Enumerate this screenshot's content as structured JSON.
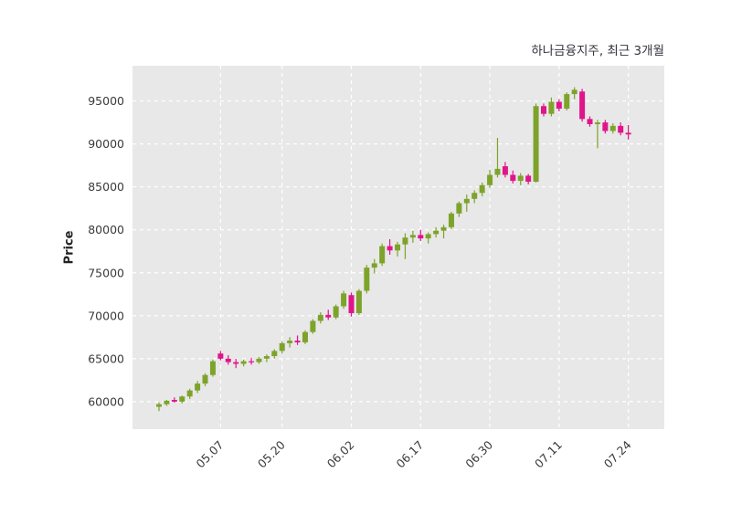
{
  "figure": {
    "title": "하나금융지주, 최근 3개월",
    "y_axis_label": "Price"
  },
  "chart_data": {
    "type": "candlestick",
    "title": "하나금융지주, 최근 3개월",
    "subtitle": "",
    "xlabel": "",
    "ylabel": "Price",
    "ylim": [
      56800,
      99100
    ],
    "y_ticks": [
      60000,
      65000,
      70000,
      75000,
      80000,
      85000,
      90000,
      95000
    ],
    "x_ticks": [
      {
        "index": 8,
        "label": "05.07"
      },
      {
        "index": 16,
        "label": "05.20"
      },
      {
        "index": 25,
        "label": "06.02"
      },
      {
        "index": 34,
        "label": "06.17"
      },
      {
        "index": 43,
        "label": "06.30"
      },
      {
        "index": 52,
        "label": "07.11"
      },
      {
        "index": 61,
        "label": "07.24"
      }
    ],
    "grid": "dashed white, horizontal and vertical, on",
    "legend_position": "none",
    "candles_format": [
      "open",
      "high",
      "low",
      "close"
    ],
    "candles": [
      [
        59400,
        59900,
        58900,
        59700
      ],
      [
        59700,
        60200,
        59500,
        60100
      ],
      [
        60200,
        60500,
        59900,
        60000
      ],
      [
        60000,
        60700,
        59800,
        60600
      ],
      [
        60600,
        61500,
        60300,
        61300
      ],
      [
        61300,
        62400,
        61000,
        62100
      ],
      [
        62100,
        63300,
        61800,
        63100
      ],
      [
        63100,
        64900,
        62900,
        64700
      ],
      [
        65600,
        65900,
        64800,
        65000
      ],
      [
        65000,
        65400,
        64300,
        64600
      ],
      [
        64600,
        65000,
        63900,
        64400
      ],
      [
        64400,
        64900,
        64100,
        64700
      ],
      [
        64700,
        65100,
        64300,
        64600
      ],
      [
        64600,
        65200,
        64400,
        65000
      ],
      [
        65000,
        65500,
        64600,
        65300
      ],
      [
        65300,
        66100,
        65000,
        65900
      ],
      [
        65900,
        67000,
        65600,
        66800
      ],
      [
        66800,
        67500,
        66300,
        67100
      ],
      [
        67100,
        67700,
        66600,
        66900
      ],
      [
        66900,
        68300,
        66700,
        68100
      ],
      [
        68100,
        69600,
        67900,
        69400
      ],
      [
        69400,
        70400,
        69100,
        70100
      ],
      [
        70100,
        70700,
        69500,
        69800
      ],
      [
        69800,
        71300,
        69600,
        71100
      ],
      [
        71100,
        72900,
        70800,
        72600
      ],
      [
        72400,
        72700,
        69900,
        70300
      ],
      [
        70300,
        73100,
        70100,
        72900
      ],
      [
        72900,
        75900,
        72600,
        75600
      ],
      [
        75600,
        76600,
        74900,
        76100
      ],
      [
        76100,
        78400,
        75800,
        78100
      ],
      [
        78100,
        78900,
        77100,
        77600
      ],
      [
        77600,
        78600,
        76900,
        78300
      ],
      [
        78300,
        79600,
        76600,
        79100
      ],
      [
        79100,
        79900,
        78500,
        79400
      ],
      [
        79400,
        80000,
        78700,
        79000
      ],
      [
        79000,
        79700,
        78400,
        79500
      ],
      [
        79500,
        80300,
        79100,
        79900
      ],
      [
        79900,
        80600,
        79000,
        80300
      ],
      [
        80300,
        82100,
        80100,
        81900
      ],
      [
        81900,
        83300,
        81500,
        83100
      ],
      [
        83100,
        84100,
        82100,
        83600
      ],
      [
        83600,
        84600,
        83100,
        84300
      ],
      [
        84300,
        85500,
        83900,
        85200
      ],
      [
        85200,
        87000,
        84900,
        86400
      ],
      [
        86400,
        90700,
        86100,
        87100
      ],
      [
        87400,
        87900,
        86100,
        86400
      ],
      [
        86400,
        86900,
        85400,
        85700
      ],
      [
        85700,
        86600,
        85200,
        86300
      ],
      [
        86300,
        86500,
        85300,
        85600
      ],
      [
        85600,
        94700,
        85500,
        94400
      ],
      [
        94400,
        94700,
        93200,
        93500
      ],
      [
        93500,
        95400,
        93200,
        94900
      ],
      [
        94900,
        95200,
        93800,
        94100
      ],
      [
        94100,
        96000,
        93900,
        95800
      ],
      [
        95800,
        96600,
        95200,
        96300
      ],
      [
        96100,
        96400,
        92600,
        92900
      ],
      [
        92900,
        93200,
        92000,
        92300
      ],
      [
        92300,
        92800,
        89500,
        92500
      ],
      [
        92500,
        92800,
        91200,
        91500
      ],
      [
        91500,
        92400,
        91200,
        92100
      ],
      [
        92100,
        92500,
        91000,
        91300
      ],
      [
        91300,
        92200,
        90500,
        91100
      ]
    ],
    "colors": {
      "up": "#7da32b",
      "down": "#e0158a",
      "plot_bg": "#e8e8e8",
      "grid_line": "#ffffff",
      "tick_label": "#3a3a3a",
      "title_text": "#35353f"
    }
  }
}
